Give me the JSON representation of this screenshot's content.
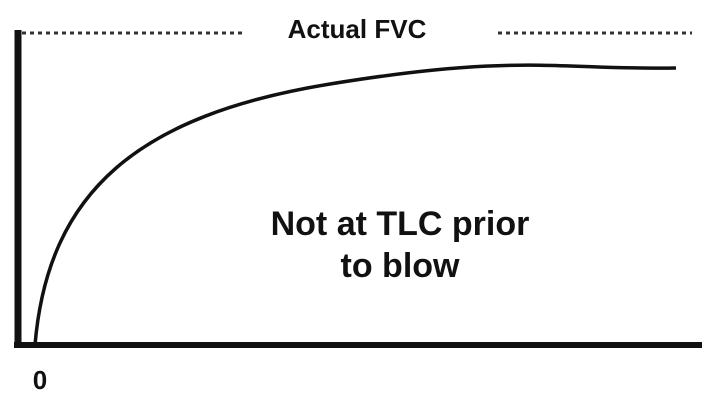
{
  "top_label": "Actual FVC",
  "annotation": [
    "Not at TLC prior",
    "to blow"
  ],
  "origin_label": "0"
}
